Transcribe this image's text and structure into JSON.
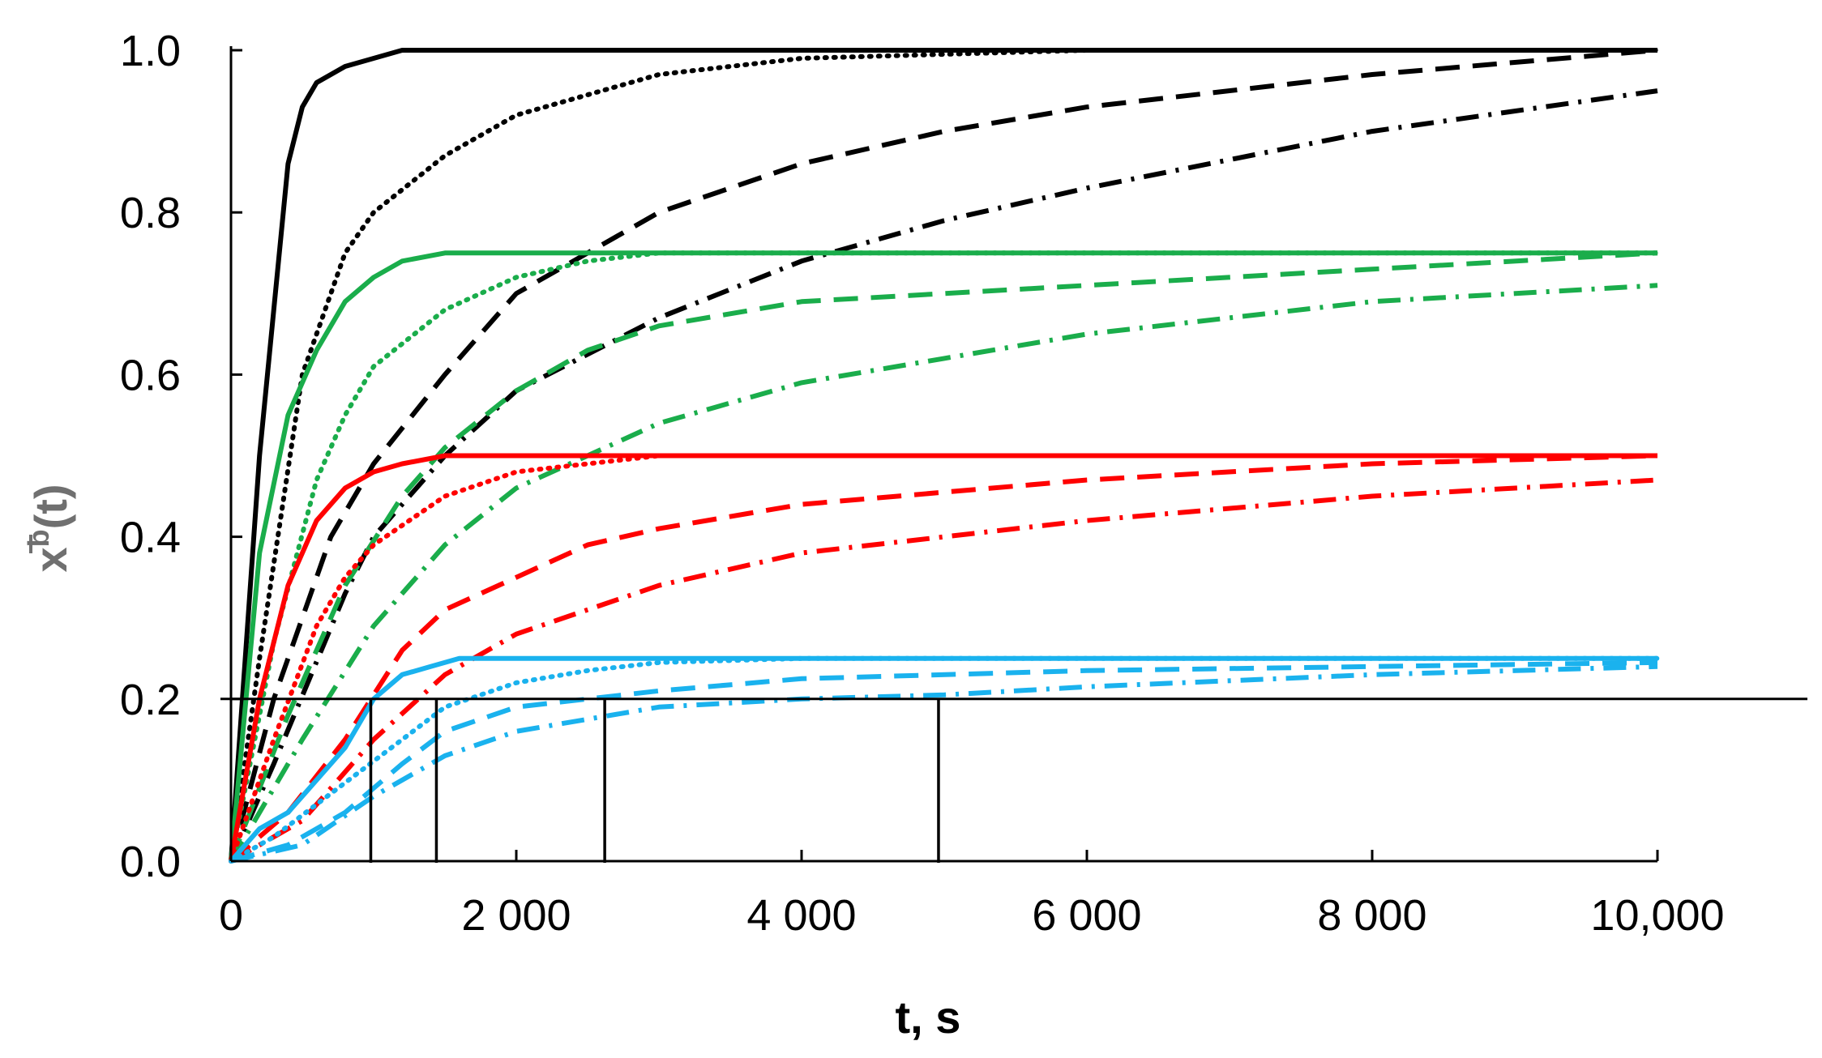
{
  "chart_data": {
    "type": "line",
    "xlabel": "t, s",
    "ylabel": {
      "base": "x",
      "sup": "b",
      "arg": "(t)"
    },
    "xlim": [
      0,
      10000
    ],
    "ylim": [
      0,
      1.0
    ],
    "x_ticks": [
      0,
      2000,
      4000,
      6000,
      8000,
      10000
    ],
    "x_tick_labels": [
      "0",
      "2 000",
      "4 000",
      "6 000",
      "8 000",
      "10,000"
    ],
    "y_ticks": [
      0,
      0.2,
      0.4,
      0.6,
      0.8,
      1.0
    ],
    "y_tick_labels": [
      "0.0",
      "0.2",
      "0.4",
      "0.6",
      "0.8",
      "1.0"
    ],
    "grid": false,
    "colors": {
      "black": "#000000",
      "green": "#1aad4b",
      "red": "#ff0000",
      "blue": "#1ab2ee"
    },
    "reference_line": {
      "y": 0.2,
      "vertical_markers_x": [
        980,
        1440,
        2620,
        4960
      ]
    },
    "series": [
      {
        "color": "black",
        "style": "solid",
        "x": [
          0,
          200,
          400,
          500,
          600,
          800,
          1000,
          1200,
          1500,
          2000,
          4000,
          10000
        ],
        "y": [
          0,
          0.5,
          0.86,
          0.93,
          0.96,
          0.98,
          0.99,
          1.0,
          1.0,
          1.0,
          1.0,
          1.0
        ]
      },
      {
        "color": "black",
        "style": "dotted",
        "x": [
          0,
          200,
          500,
          800,
          1000,
          1500,
          2000,
          3000,
          4000,
          6000,
          10000
        ],
        "y": [
          0,
          0.25,
          0.6,
          0.75,
          0.8,
          0.87,
          0.92,
          0.97,
          0.99,
          1.0,
          1.0
        ]
      },
      {
        "color": "black",
        "style": "dashed",
        "x": [
          0,
          300,
          700,
          1000,
          1500,
          2000,
          3000,
          4000,
          5000,
          6000,
          8000,
          10000
        ],
        "y": [
          0,
          0.2,
          0.4,
          0.49,
          0.6,
          0.7,
          0.8,
          0.86,
          0.9,
          0.93,
          0.97,
          1.0
        ]
      },
      {
        "color": "black",
        "style": "dashdot",
        "x": [
          0,
          300,
          800,
          1000,
          1500,
          2000,
          3000,
          4000,
          5000,
          6000,
          8000,
          10000
        ],
        "y": [
          0,
          0.12,
          0.33,
          0.4,
          0.5,
          0.58,
          0.67,
          0.74,
          0.79,
          0.83,
          0.9,
          0.95
        ]
      },
      {
        "color": "green",
        "style": "solid",
        "x": [
          0,
          200,
          400,
          600,
          800,
          1000,
          1200,
          1500,
          2000,
          10000
        ],
        "y": [
          0,
          0.38,
          0.55,
          0.63,
          0.69,
          0.72,
          0.74,
          0.75,
          0.75,
          0.75
        ]
      },
      {
        "color": "green",
        "style": "dotted",
        "x": [
          0,
          300,
          600,
          800,
          1000,
          1500,
          2000,
          2500,
          3000,
          4000,
          10000
        ],
        "y": [
          0,
          0.27,
          0.47,
          0.55,
          0.61,
          0.68,
          0.72,
          0.74,
          0.75,
          0.75,
          0.75
        ]
      },
      {
        "color": "green",
        "style": "dashed",
        "x": [
          0,
          400,
          800,
          1200,
          1500,
          2000,
          2500,
          3000,
          4000,
          6000,
          8000,
          10000
        ],
        "y": [
          0,
          0.18,
          0.34,
          0.45,
          0.51,
          0.58,
          0.63,
          0.66,
          0.69,
          0.71,
          0.73,
          0.75
        ]
      },
      {
        "color": "green",
        "style": "dashdot",
        "x": [
          0,
          500,
          1000,
          1500,
          2000,
          2500,
          3000,
          4000,
          5000,
          6000,
          8000,
          10000
        ],
        "y": [
          0,
          0.15,
          0.29,
          0.39,
          0.46,
          0.5,
          0.54,
          0.59,
          0.62,
          0.65,
          0.69,
          0.71
        ]
      },
      {
        "color": "red",
        "style": "solid",
        "x": [
          0,
          200,
          400,
          600,
          800,
          1000,
          1200,
          1500,
          2000,
          10000
        ],
        "y": [
          0,
          0.2,
          0.34,
          0.42,
          0.46,
          0.48,
          0.49,
          0.5,
          0.5,
          0.5
        ]
      },
      {
        "color": "red",
        "style": "dotted",
        "x": [
          0,
          300,
          600,
          800,
          1000,
          1500,
          2000,
          2500,
          3000,
          4000,
          10000
        ],
        "y": [
          0,
          0.15,
          0.29,
          0.35,
          0.39,
          0.45,
          0.48,
          0.49,
          0.5,
          0.5,
          0.5
        ]
      },
      {
        "color": "red",
        "style": "dashed",
        "x": [
          0,
          400,
          800,
          1200,
          1500,
          2000,
          2500,
          3000,
          4000,
          6000,
          8000,
          10000
        ],
        "y": [
          0,
          0.06,
          0.15,
          0.26,
          0.31,
          0.35,
          0.39,
          0.41,
          0.44,
          0.47,
          0.49,
          0.5
        ]
      },
      {
        "color": "red",
        "style": "dashdot",
        "x": [
          0,
          500,
          1000,
          1500,
          2000,
          2500,
          3000,
          4000,
          5000,
          6000,
          8000,
          10000
        ],
        "y": [
          0,
          0.05,
          0.15,
          0.23,
          0.28,
          0.31,
          0.34,
          0.38,
          0.4,
          0.42,
          0.45,
          0.47
        ]
      },
      {
        "color": "blue",
        "style": "solid",
        "x": [
          0,
          200,
          400,
          600,
          800,
          1000,
          1200,
          1400,
          1600,
          2000,
          10000
        ],
        "y": [
          0,
          0.04,
          0.06,
          0.1,
          0.14,
          0.2,
          0.23,
          0.24,
          0.25,
          0.25,
          0.25
        ]
      },
      {
        "color": "blue",
        "style": "dotted",
        "x": [
          0,
          300,
          600,
          900,
          1200,
          1500,
          2000,
          2500,
          3000,
          4000,
          10000
        ],
        "y": [
          0,
          0.03,
          0.07,
          0.11,
          0.15,
          0.19,
          0.22,
          0.235,
          0.245,
          0.25,
          0.25
        ]
      },
      {
        "color": "blue",
        "style": "dashed",
        "x": [
          0,
          400,
          800,
          1200,
          1500,
          2000,
          2500,
          3000,
          4000,
          6000,
          8000,
          10000
        ],
        "y": [
          0,
          0.02,
          0.06,
          0.12,
          0.16,
          0.19,
          0.2,
          0.21,
          0.225,
          0.235,
          0.24,
          0.245
        ]
      },
      {
        "color": "blue",
        "style": "dashdot",
        "x": [
          0,
          500,
          1000,
          1500,
          2000,
          2500,
          3000,
          4000,
          5000,
          6000,
          8000,
          10000
        ],
        "y": [
          0,
          0.02,
          0.08,
          0.13,
          0.16,
          0.175,
          0.19,
          0.2,
          0.205,
          0.215,
          0.23,
          0.24
        ]
      }
    ]
  }
}
